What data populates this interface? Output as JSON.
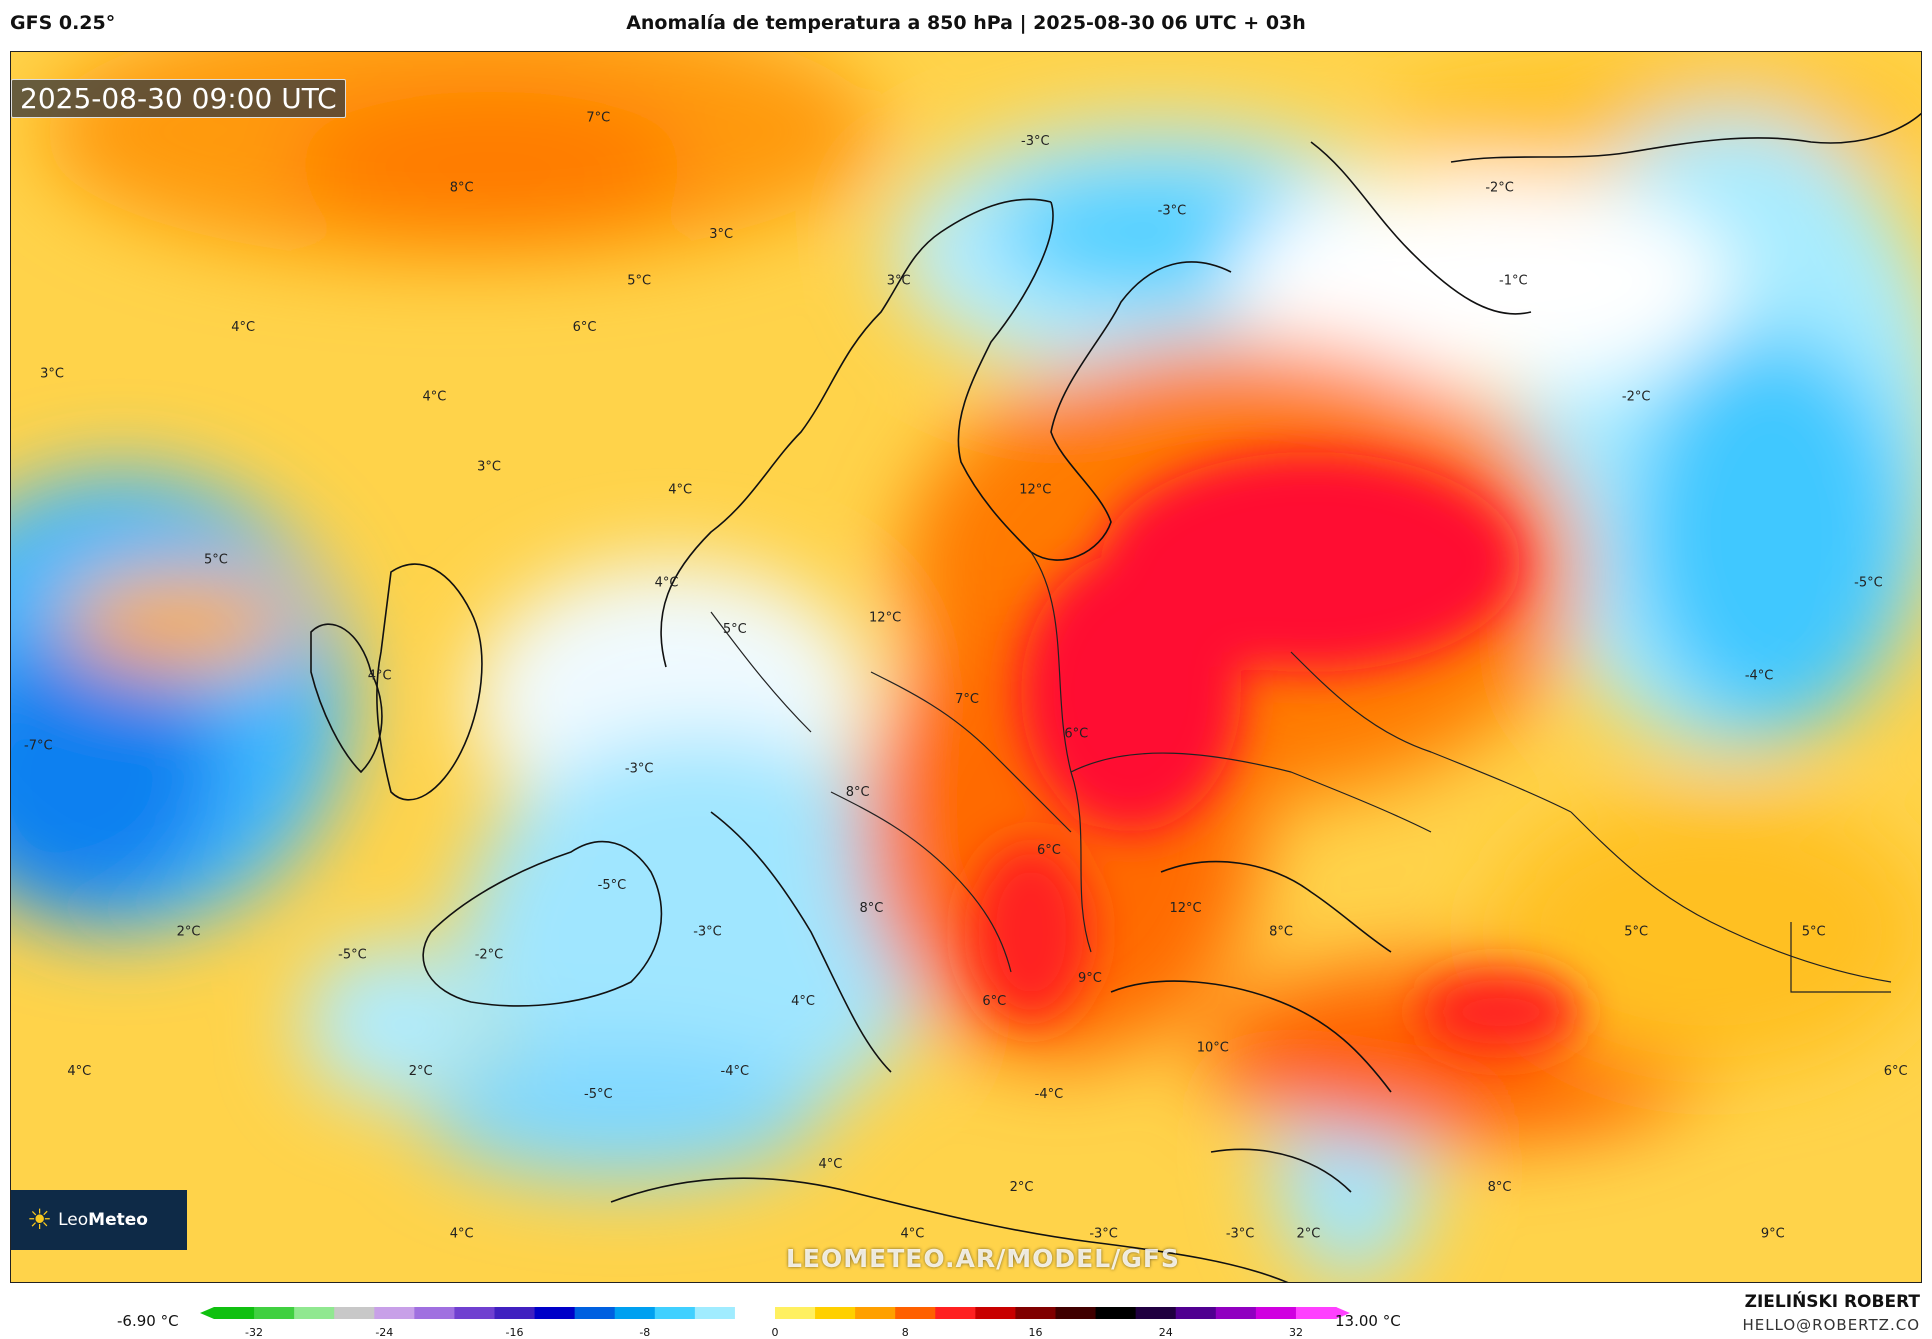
{
  "header": {
    "model": "GFS 0.25°",
    "title": "Anomalía de temperatura a 850 hPa | 2025-08-30 06 UTC + 03h"
  },
  "map": {
    "valid_time": "2025-08-30 09:00 UTC",
    "watermark": "LEOMETEO.AR/MODEL/GFS",
    "logo": {
      "prefix": "Leo",
      "bold": "Meteo"
    },
    "labels": [
      {
        "text": "7°C",
        "lon": 8,
        "lat": 74
      },
      {
        "text": "8°C",
        "lon": -2,
        "lat": 71
      },
      {
        "text": "3°C",
        "lon": 17,
        "lat": 69
      },
      {
        "text": "5°C",
        "lon": 11,
        "lat": 67
      },
      {
        "text": "6°C",
        "lon": 7,
        "lat": 65
      },
      {
        "text": "4°C",
        "lon": -18,
        "lat": 65
      },
      {
        "text": "3°C",
        "lon": -32,
        "lat": 63
      },
      {
        "text": "4°C",
        "lon": -4,
        "lat": 62
      },
      {
        "text": "3°C",
        "lon": 30,
        "lat": 67
      },
      {
        "text": "3°C",
        "lon": 0,
        "lat": 59
      },
      {
        "text": "4°C",
        "lon": 14,
        "lat": 58
      },
      {
        "text": "-3°C",
        "lon": 40,
        "lat": 73
      },
      {
        "text": "-3°C",
        "lon": 50,
        "lat": 70
      },
      {
        "text": "-2°C",
        "lon": 74,
        "lat": 71
      },
      {
        "text": "-1°C",
        "lon": 75,
        "lat": 67
      },
      {
        "text": "-2°C",
        "lon": 84,
        "lat": 62
      },
      {
        "text": "12°C",
        "lon": 40,
        "lat": 58
      },
      {
        "text": "12°C",
        "lon": 29,
        "lat": 52.5
      },
      {
        "text": "5°C",
        "lon": -20,
        "lat": 55
      },
      {
        "text": "4°C",
        "lon": 13,
        "lat": 54
      },
      {
        "text": "5°C",
        "lon": 18,
        "lat": 52
      },
      {
        "text": "4°C",
        "lon": -8,
        "lat": 50
      },
      {
        "text": "-7°C",
        "lon": -33,
        "lat": 47
      },
      {
        "text": "7°C",
        "lon": 35,
        "lat": 49
      },
      {
        "text": "6°C",
        "lon": 43,
        "lat": 47.5
      },
      {
        "text": "-5°C",
        "lon": 101,
        "lat": 54
      },
      {
        "text": "-4°C",
        "lon": 93,
        "lat": 50
      },
      {
        "text": "-3°C",
        "lon": 11,
        "lat": 46
      },
      {
        "text": "8°C",
        "lon": 27,
        "lat": 45
      },
      {
        "text": "6°C",
        "lon": 41,
        "lat": 42.5
      },
      {
        "text": "-5°C",
        "lon": 9,
        "lat": 41
      },
      {
        "text": "-3°C",
        "lon": 16,
        "lat": 39
      },
      {
        "text": "8°C",
        "lon": 28,
        "lat": 40
      },
      {
        "text": "12°C",
        "lon": 51,
        "lat": 40
      },
      {
        "text": "8°C",
        "lon": 58,
        "lat": 39
      },
      {
        "text": "5°C",
        "lon": 84,
        "lat": 39
      },
      {
        "text": "5°C",
        "lon": 97,
        "lat": 39
      },
      {
        "text": "2°C",
        "lon": -22,
        "lat": 39
      },
      {
        "text": "-5°C",
        "lon": -10,
        "lat": 38
      },
      {
        "text": "-2°C",
        "lon": 0,
        "lat": 38
      },
      {
        "text": "9°C",
        "lon": 44,
        "lat": 37
      },
      {
        "text": "6°C",
        "lon": 37,
        "lat": 36
      },
      {
        "text": "4°C",
        "lon": 23,
        "lat": 36
      },
      {
        "text": "10°C",
        "lon": 53,
        "lat": 34
      },
      {
        "text": "6°C",
        "lon": 103,
        "lat": 33
      },
      {
        "text": "4°C",
        "lon": -30,
        "lat": 33
      },
      {
        "text": "2°C",
        "lon": -5,
        "lat": 33
      },
      {
        "text": "-4°C",
        "lon": 18,
        "lat": 33
      },
      {
        "text": "-5°C",
        "lon": 8,
        "lat": 32
      },
      {
        "text": "-4°C",
        "lon": 41,
        "lat": 32
      },
      {
        "text": "4°C",
        "lon": 25,
        "lat": 29
      },
      {
        "text": "2°C",
        "lon": 39,
        "lat": 28
      },
      {
        "text": "8°C",
        "lon": 74,
        "lat": 28
      },
      {
        "text": "4°C",
        "lon": -2,
        "lat": 26
      },
      {
        "text": "4°C",
        "lon": 31,
        "lat": 26
      },
      {
        "text": "-3°C",
        "lon": 45,
        "lat": 26
      },
      {
        "text": "-3°C",
        "lon": 55,
        "lat": 26
      },
      {
        "text": "2°C",
        "lon": 60,
        "lat": 26
      },
      {
        "text": "9°C",
        "lon": 94,
        "lat": 26
      }
    ]
  },
  "scale": {
    "min_label": "-6.90 °C",
    "max_label": "13.00 °C",
    "ticks": [
      "-32",
      "-24",
      "-16",
      "-8",
      "0",
      "8",
      "16",
      "24",
      "32"
    ],
    "stops": [
      "#10c010",
      "#40d040",
      "#90e890",
      "#c8c8c8",
      "#c8a0e8",
      "#a070e0",
      "#7040d0",
      "#4020c0",
      "#0000c8",
      "#0060e0",
      "#00a0f0",
      "#40d0ff",
      "#a0ecff",
      "#ffffff",
      "#fff060",
      "#ffd000",
      "#ffa000",
      "#ff6000",
      "#ff2020",
      "#c80000",
      "#800000",
      "#400000",
      "#000000",
      "#200040",
      "#500090",
      "#9000c0",
      "#d000e0",
      "#ff40ff"
    ]
  },
  "footer": {
    "author": "ZIELIŃSKI ROBERT",
    "email": "HELLO@ROBERTZ.CO"
  }
}
